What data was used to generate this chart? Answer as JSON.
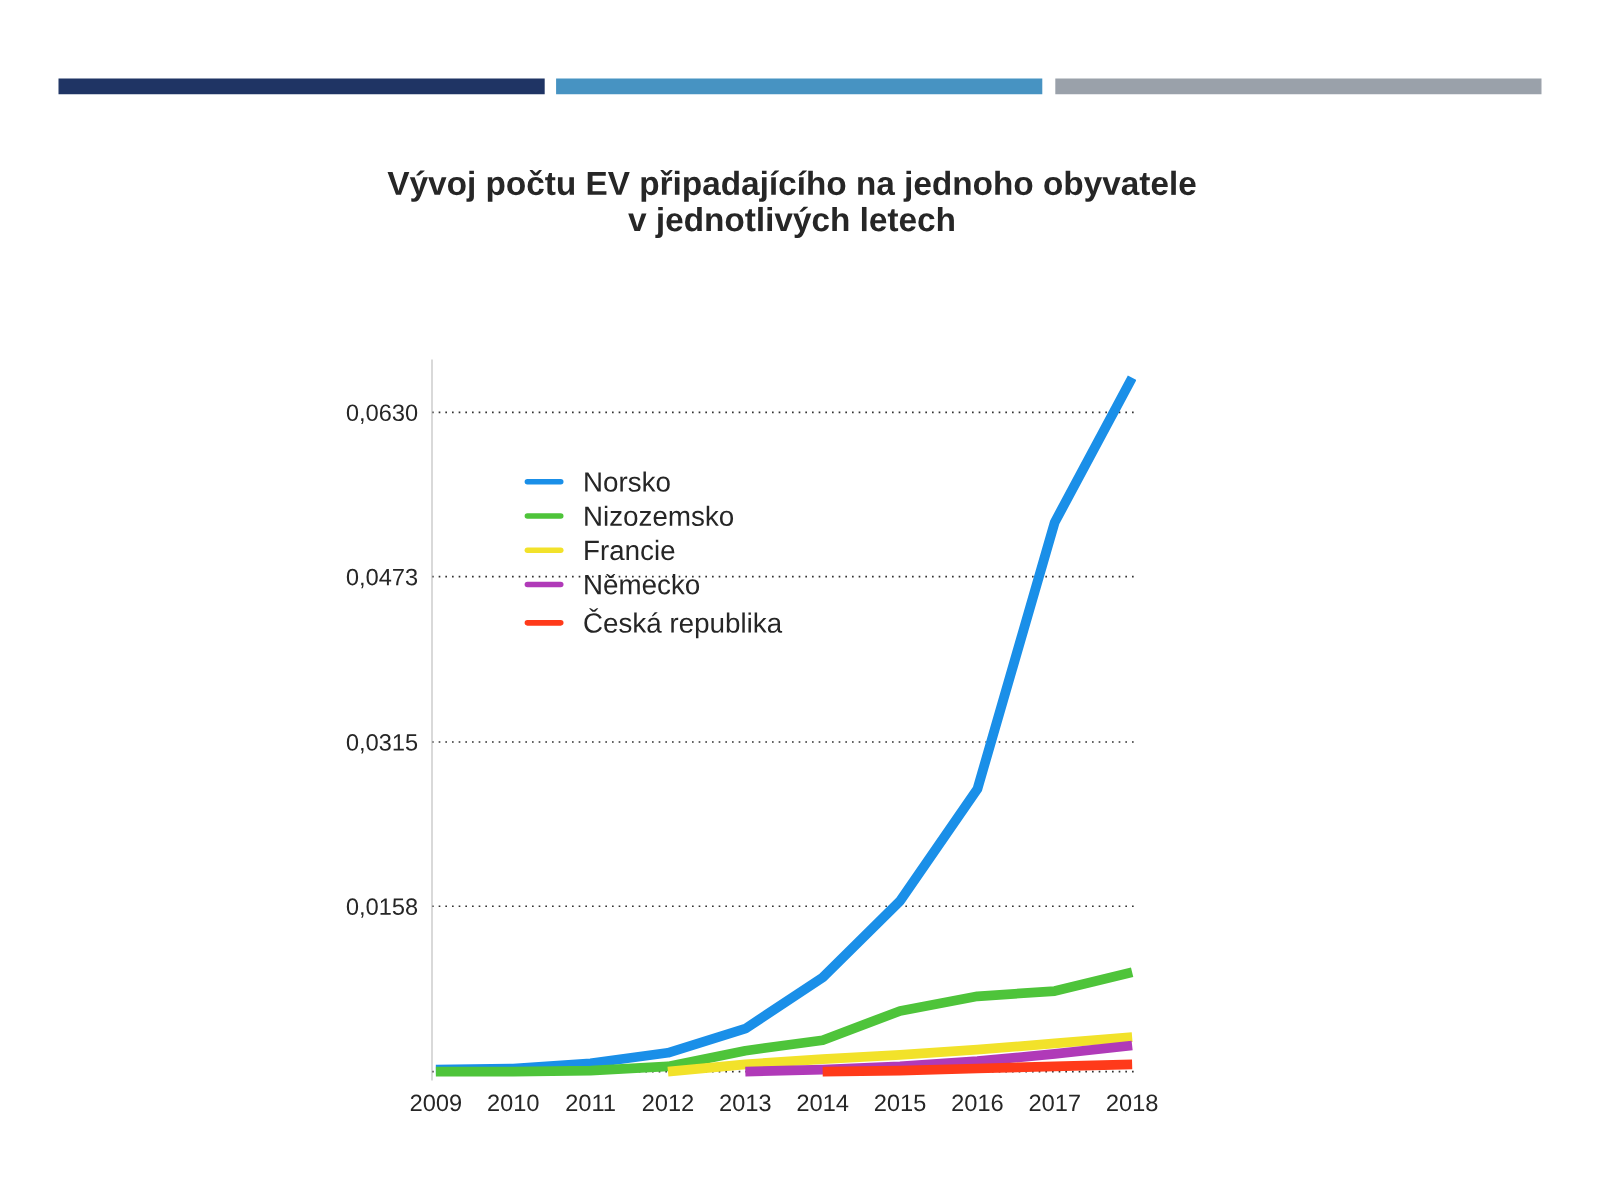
{
  "chart_data": {
    "type": "line",
    "title": "Vývoj počtu EV připadajícího na jednoho obyvatele\nv jednotlivých letech",
    "categories": [
      "2009",
      "2010",
      "2011",
      "2012",
      "2013",
      "2014",
      "2015",
      "2016",
      "2017",
      "2018"
    ],
    "series": [
      {
        "name": "Norsko",
        "color": "#1a8fe8",
        "values": [
          0.0002,
          0.0003,
          0.0008,
          0.0018,
          0.0041,
          0.009,
          0.0163,
          0.027,
          0.0525,
          0.0663
        ]
      },
      {
        "name": "Nizozemsko",
        "color": "#4ec43a",
        "values": [
          0.0,
          0.0,
          0.0001,
          0.0005,
          0.002,
          0.003,
          0.0058,
          0.0072,
          0.0077,
          0.0095
        ]
      },
      {
        "name": "Francie",
        "color": "#f2e22a",
        "values": [
          null,
          null,
          null,
          0.0,
          0.0007,
          0.0012,
          0.0016,
          0.0021,
          0.0027,
          0.0033
        ]
      },
      {
        "name": "Německo",
        "color": "#b03ab8",
        "values": [
          null,
          null,
          null,
          null,
          0.0,
          0.0002,
          0.0005,
          0.001,
          0.0017,
          0.0025
        ]
      },
      {
        "name": "Česká republika",
        "color": "#ff3a1a",
        "values": [
          null,
          null,
          null,
          null,
          null,
          0.0,
          0.0001,
          0.0003,
          0.0005,
          0.0007
        ]
      }
    ],
    "ylim": [
      -0.0008,
      0.068
    ],
    "yticks": [
      {
        "value": 0,
        "label": null
      },
      {
        "value": 0.0158,
        "label": "0,0158"
      },
      {
        "value": 0.0315,
        "label": "0,0315"
      },
      {
        "value": 0.0473,
        "label": "0,0473"
      },
      {
        "value": 0.063,
        "label": "0,0630"
      }
    ],
    "grid": "y",
    "legend": "top left",
    "marker": "none",
    "line_style": "solid"
  }
}
